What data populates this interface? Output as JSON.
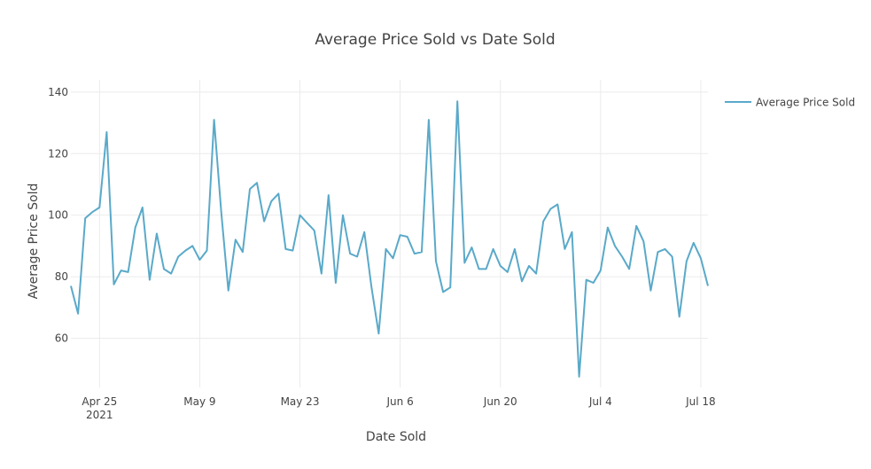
{
  "chart_data": {
    "type": "line",
    "title": "Average Price Sold vs Date Sold",
    "xlabel": "Date Sold",
    "ylabel": "Average Price Sold",
    "x_start": "2021-04-21",
    "x_end": "2021-07-19",
    "xlim": [
      "2021-04-21",
      "2021-07-19"
    ],
    "ylim": [
      44,
      144
    ],
    "x_ticks": [
      {
        "date": "2021-04-25",
        "label": "Apr 25",
        "sublabel": "2021"
      },
      {
        "date": "2021-05-09",
        "label": "May 9",
        "sublabel": ""
      },
      {
        "date": "2021-05-23",
        "label": "May 23",
        "sublabel": ""
      },
      {
        "date": "2021-06-06",
        "label": "Jun 6",
        "sublabel": ""
      },
      {
        "date": "2021-06-20",
        "label": "Jun 20",
        "sublabel": ""
      },
      {
        "date": "2021-07-04",
        "label": "Jul 4",
        "sublabel": ""
      },
      {
        "date": "2021-07-18",
        "label": "Jul 18",
        "sublabel": ""
      }
    ],
    "y_ticks": [
      60,
      80,
      100,
      120,
      140
    ],
    "grid": true,
    "legend_position": "top-right",
    "series": [
      {
        "name": "Average Price Sold",
        "color": "#5aa9c9",
        "values": [
          77,
          68,
          99,
          101,
          102.5,
          127,
          77.5,
          82,
          81.5,
          96,
          102.5,
          79,
          94,
          82.5,
          81,
          86.5,
          88.5,
          90,
          85.5,
          88.5,
          131,
          101,
          75.5,
          92,
          88,
          108.5,
          110.5,
          98,
          104.5,
          107,
          89,
          88.5,
          100,
          97.5,
          95,
          81,
          106.5,
          78,
          100,
          87.5,
          86.5,
          94.5,
          76.5,
          61.5,
          89,
          86,
          93.5,
          93,
          87.5,
          88,
          131,
          85,
          75,
          76.5,
          137,
          84.5,
          89.5,
          82.5,
          82.5,
          89,
          83.5,
          81.5,
          89,
          78.5,
          83.5,
          81,
          98,
          102,
          103.5,
          89,
          94.5,
          47.5,
          79,
          78,
          82,
          96,
          90,
          86.5,
          82.5,
          96.5,
          91.5,
          75.5,
          88,
          89,
          86.5,
          67,
          85,
          91,
          86,
          77
        ]
      }
    ]
  }
}
